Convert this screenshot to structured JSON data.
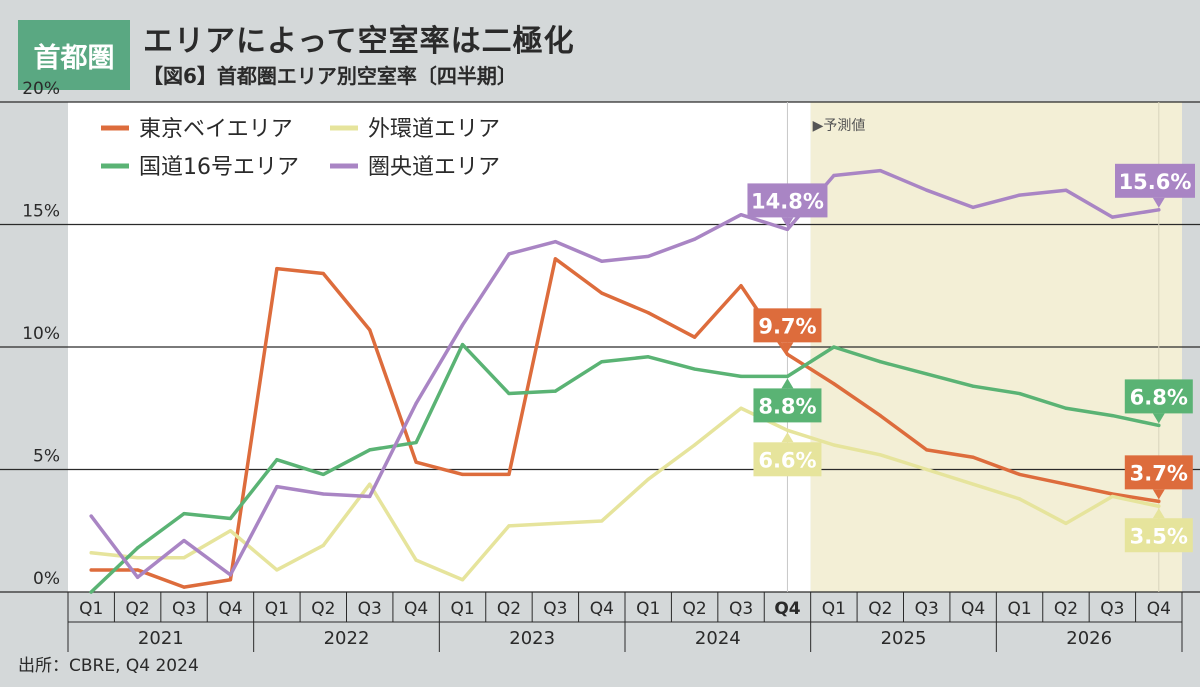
{
  "header": {
    "badge": "首都圏",
    "title": "エリアによって空室率は二極化",
    "subtitle": "【図6】首都圏エリア別空室率〔四半期〕"
  },
  "source": "出所：CBRE, Q4 2024",
  "colors": {
    "background": "#d4d8d9",
    "plot_actual": "#ffffff",
    "plot_forecast": "#f3efd6",
    "badge": "#5aa882"
  },
  "chart_data": {
    "type": "line",
    "title": "",
    "xlabel": "",
    "ylabel": "",
    "ylim": [
      0,
      20
    ],
    "yticks": [
      "0%",
      "5%",
      "10%",
      "15%",
      "20%"
    ],
    "grid": "horizontal",
    "legend_position": "top-left",
    "quarters": [
      "Q1",
      "Q2",
      "Q3",
      "Q4",
      "Q1",
      "Q2",
      "Q3",
      "Q4",
      "Q1",
      "Q2",
      "Q3",
      "Q4",
      "Q1",
      "Q2",
      "Q3",
      "Q4",
      "Q1",
      "Q2",
      "Q3",
      "Q4",
      "Q1",
      "Q2",
      "Q3",
      "Q4"
    ],
    "years": [
      "2021",
      "2022",
      "2023",
      "2024",
      "2025",
      "2026"
    ],
    "highlight_quarter_index": 15,
    "forecast_label": "▶予測値",
    "forecast_start_index": 16,
    "series": [
      {
        "name": "東京ベイエリア",
        "color": "#dd6c3c",
        "values": [
          0.9,
          0.9,
          0.2,
          0.5,
          13.2,
          13.0,
          10.7,
          5.3,
          4.8,
          4.8,
          13.6,
          12.2,
          11.4,
          10.4,
          12.5,
          9.7,
          8.5,
          7.2,
          5.8,
          5.5,
          4.8,
          4.4,
          4.0,
          3.7
        ]
      },
      {
        "name": "外環道エリア",
        "color": "#e6e49c",
        "values": [
          1.6,
          1.4,
          1.4,
          2.5,
          0.9,
          1.9,
          4.4,
          1.3,
          0.5,
          2.7,
          2.8,
          2.9,
          4.6,
          6.0,
          7.5,
          6.6,
          6.0,
          5.6,
          5.0,
          4.4,
          3.8,
          2.8,
          3.9,
          3.5
        ]
      },
      {
        "name": "国道16号エリア",
        "color": "#5ab374",
        "values": [
          0.0,
          1.8,
          3.2,
          3.0,
          5.4,
          4.8,
          5.8,
          6.1,
          10.1,
          8.1,
          8.2,
          9.4,
          9.6,
          9.1,
          8.8,
          8.8,
          10.0,
          9.4,
          8.9,
          8.4,
          8.1,
          7.5,
          7.2,
          6.8
        ]
      },
      {
        "name": "圏央道エリア",
        "color": "#a985c4",
        "values": [
          3.1,
          0.6,
          2.1,
          0.7,
          4.3,
          4.0,
          3.9,
          7.7,
          10.9,
          13.8,
          14.3,
          13.5,
          13.7,
          14.4,
          15.4,
          14.8,
          17.0,
          17.2,
          16.4,
          15.7,
          16.2,
          16.4,
          15.3,
          15.6
        ]
      }
    ],
    "callouts": [
      {
        "text": "14.8%",
        "series": 3,
        "index": 15,
        "side": "above"
      },
      {
        "text": "15.6%",
        "series": 3,
        "index": 23,
        "side": "above"
      },
      {
        "text": "9.7%",
        "series": 0,
        "index": 15,
        "side": "above"
      },
      {
        "text": "8.8%",
        "series": 2,
        "index": 15,
        "side": "below"
      },
      {
        "text": "6.6%",
        "series": 1,
        "index": 15,
        "side": "below"
      },
      {
        "text": "6.8%",
        "series": 2,
        "index": 23,
        "side": "above"
      },
      {
        "text": "3.7%",
        "series": 0,
        "index": 23,
        "side": "above"
      },
      {
        "text": "3.5%",
        "series": 1,
        "index": 23,
        "side": "below"
      }
    ]
  }
}
